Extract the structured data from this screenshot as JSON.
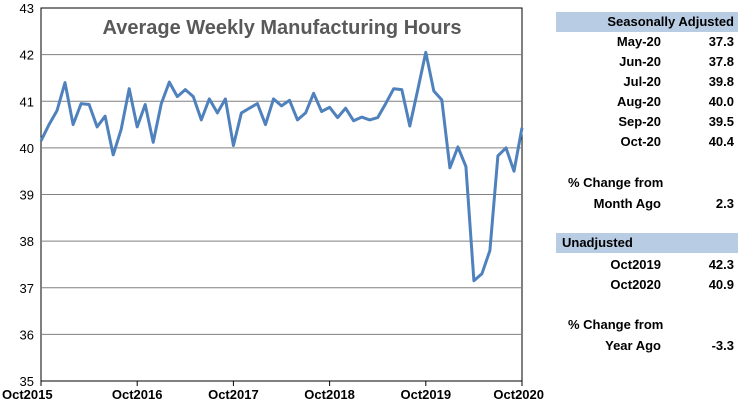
{
  "chart_data": {
    "type": "line",
    "title": "Average Weekly Manufacturing Hours",
    "ylim": [
      35,
      43
    ],
    "yticks": [
      35,
      36,
      37,
      38,
      39,
      40,
      41,
      42,
      43
    ],
    "xtick_labels": [
      "Oct2015",
      "Oct2016",
      "Oct2017",
      "Oct2018",
      "Oct2019",
      "Oct2020"
    ],
    "grid": true,
    "line_color": "#4f81bd",
    "series": [
      {
        "values": [
          40.15,
          40.5,
          40.8,
          41.4,
          40.5,
          40.95,
          40.93,
          40.45,
          40.68,
          39.85,
          40.4,
          41.27,
          40.45,
          40.93,
          40.12,
          40.95,
          41.41,
          41.1,
          41.25,
          41.1,
          40.6,
          41.05,
          40.75,
          41.05,
          40.05,
          40.75,
          40.85,
          40.95,
          40.5,
          41.05,
          40.9,
          41.02,
          40.6,
          40.75,
          41.17,
          40.78,
          40.87,
          40.65,
          40.85,
          40.58,
          40.66,
          40.6,
          40.65,
          40.95,
          41.27,
          41.25,
          40.47,
          41.25,
          42.05,
          41.22,
          41.03,
          39.57,
          40.02,
          39.6,
          37.15,
          37.3,
          37.8,
          39.83,
          40.0,
          39.5,
          40.43
        ]
      }
    ]
  },
  "seasonally_adjusted": {
    "header": "Seasonally Adjusted",
    "rows": [
      {
        "label": "May-20",
        "value": "37.3"
      },
      {
        "label": "Jun-20",
        "value": "37.8"
      },
      {
        "label": "Jul-20",
        "value": "39.8"
      },
      {
        "label": "Aug-20",
        "value": "40.0"
      },
      {
        "label": "Sep-20",
        "value": "39.5"
      },
      {
        "label": "Oct-20",
        "value": "40.4"
      }
    ],
    "change_title": "% Change from",
    "change_label": "Month Ago",
    "change_value": "2.3"
  },
  "unadjusted": {
    "header": "Unadjusted",
    "rows": [
      {
        "label": "Oct2019",
        "value": "42.3"
      },
      {
        "label": "Oct2020",
        "value": "40.9"
      }
    ],
    "change_title": "% Change from",
    "change_label": "Year Ago",
    "change_value": "-3.3"
  }
}
